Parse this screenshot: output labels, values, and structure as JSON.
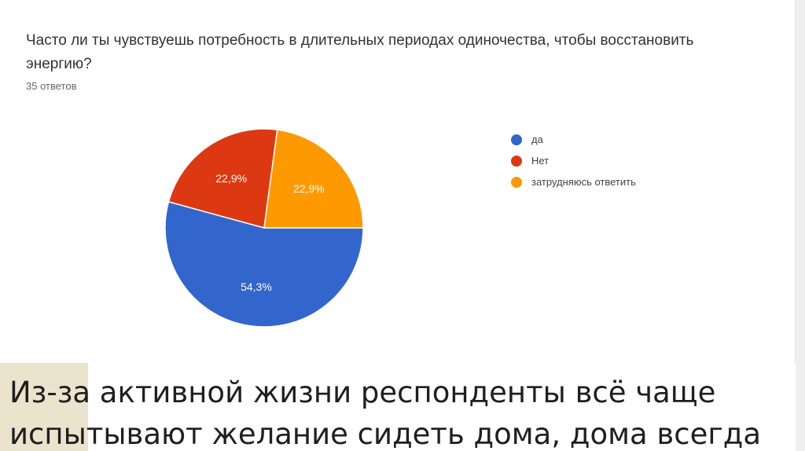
{
  "question": {
    "title": "Часто ли ты чувствуешь потребность в длительных периодах одиночества, чтобы восстановить энергию?",
    "responses": "35 ответов"
  },
  "chart_data": {
    "type": "pie",
    "title": "Часто ли ты чувствуешь потребность в длительных периодах одиночества, чтобы восстановить энергию?",
    "categories": [
      "да",
      "Нет",
      "затрудняюсь ответить"
    ],
    "values": [
      54.3,
      22.9,
      22.9
    ],
    "value_labels": [
      "54,3%",
      "22,9%",
      "22,9%"
    ],
    "colors": [
      "#3366cc",
      "#dc3912",
      "#ff9900"
    ],
    "legend_position": "right"
  },
  "footer": {
    "line1": "Из-за активной жизни респонденты всё чаще",
    "line2": "испытывают желание сидеть дома, дома всегда"
  }
}
